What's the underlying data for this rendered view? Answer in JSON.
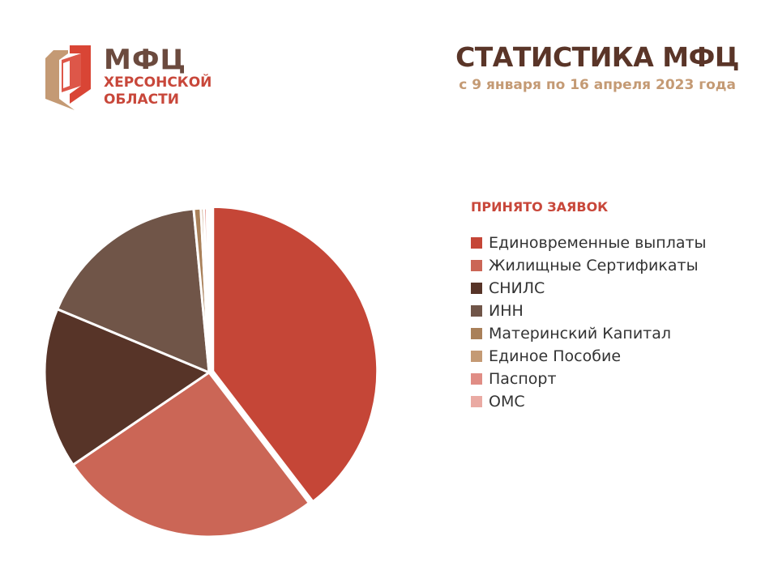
{
  "logo": {
    "main": "МФЦ",
    "line1": "ХЕРСОНСКОЙ",
    "line2": "ОБЛАСТИ"
  },
  "header": {
    "title": "СТАТИСТИКА МФЦ",
    "subtitle": "с 9 января по 16 апреля 2023 года"
  },
  "colors": {
    "logo_red": "#d94535",
    "logo_tan": "#c49a74",
    "brown_text": "#6b4a3e",
    "accent_red": "#c8473a"
  },
  "chart_data": {
    "type": "pie",
    "legend_title": "ПРИНЯТО  ЗАЯВОК",
    "legend_position": "right",
    "categories": [
      "Единовременные выплаты",
      "Жилищные Сертификаты",
      "СНИЛС",
      "ИНН",
      "Материнский Капитал",
      "Единое Пособие",
      "Паспорт",
      "ОМС"
    ],
    "values": [
      39.6,
      25.9,
      15.8,
      17.2,
      0.7,
      0.3,
      0.3,
      0.2
    ],
    "colors": [
      "#c54637",
      "#cb6656",
      "#573428",
      "#705548",
      "#a98059",
      "#c49a74",
      "#e08d85",
      "#eaaaa3"
    ]
  }
}
